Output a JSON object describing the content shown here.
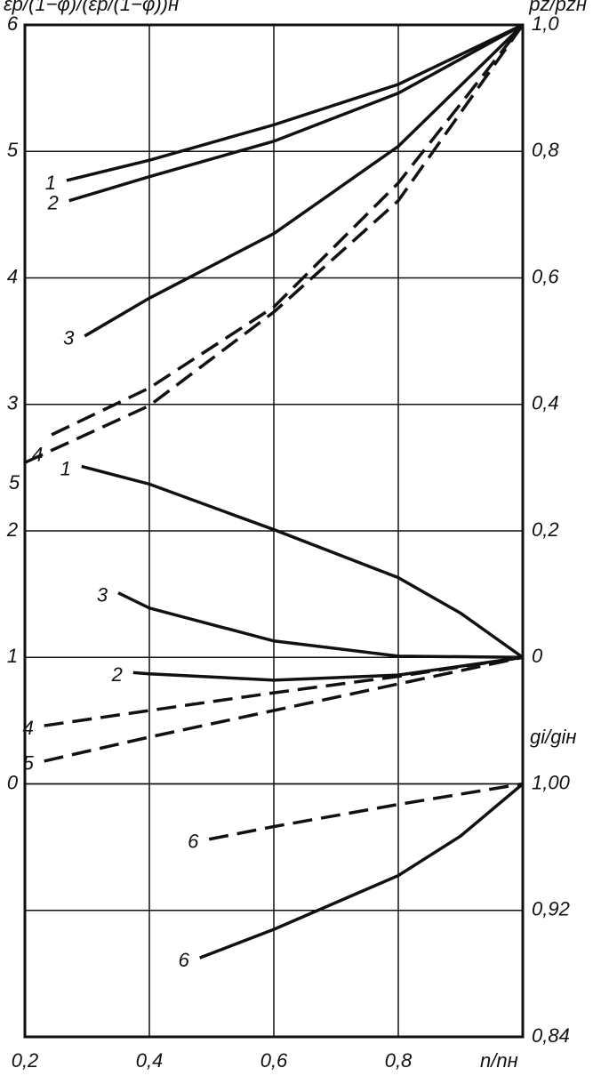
{
  "chart_data": {
    "type": "line",
    "y_label": "εp/(1−φ)/(εp/(1−φ))н",
    "y2_label": "pz/pzн",
    "y3_label": "gi/giн",
    "x_label": "n/nн",
    "xlim": [
      0.2,
      1.0
    ],
    "xticks": [
      {
        "value": 0.2,
        "label": "0,2"
      },
      {
        "value": 0.4,
        "label": "0,4"
      },
      {
        "value": 0.6,
        "label": "0,6"
      },
      {
        "value": 0.8,
        "label": "0,8"
      }
    ],
    "ylim": [
      -2,
      6
    ],
    "yticks": [
      0,
      1,
      2,
      3,
      4,
      5,
      6
    ],
    "y2lim": [
      -0.6,
      1.0
    ],
    "y2ticks": [
      {
        "value": 0,
        "label": "0"
      },
      {
        "value": 0.2,
        "label": "0,2"
      },
      {
        "value": 0.4,
        "label": "0,4"
      },
      {
        "value": 0.6,
        "label": "0,6"
      },
      {
        "value": 0.8,
        "label": "0,8"
      },
      {
        "value": 1.0,
        "label": "1,0"
      }
    ],
    "y3lim": [
      0.84,
      1.48
    ],
    "y3ticks": [
      {
        "value": 0.84,
        "label": "0,84"
      },
      {
        "value": 0.92,
        "label": "0,92"
      },
      {
        "value": 1.0,
        "label": "1,00"
      }
    ],
    "grid": true,
    "series": [
      {
        "name": "1",
        "color": "#111",
        "dash": false,
        "axis": "y2",
        "x": [
          0.267,
          0.4,
          0.6,
          0.8,
          1.0
        ],
        "values": [
          0.754,
          0.786,
          0.842,
          0.906,
          1.0
        ]
      },
      {
        "name": "2",
        "color": "#111",
        "dash": false,
        "axis": "y2",
        "x": [
          0.271,
          0.4,
          0.6,
          0.8,
          1.0
        ],
        "values": [
          0.722,
          0.76,
          0.816,
          0.892,
          1.0
        ]
      },
      {
        "name": "3",
        "color": "#111",
        "dash": false,
        "axis": "y2",
        "x": [
          0.296,
          0.4,
          0.6,
          0.8,
          1.0
        ],
        "values": [
          0.508,
          0.568,
          0.67,
          0.808,
          1.0
        ]
      },
      {
        "name": "4",
        "color": "#111",
        "dash": true,
        "axis": "y2",
        "x": [
          0.243,
          0.4,
          0.6,
          0.8,
          1.0
        ],
        "values": [
          0.352,
          0.426,
          0.554,
          0.75,
          1.0
        ]
      },
      {
        "name": "5",
        "color": "#111",
        "dash": true,
        "axis": "y2",
        "x": [
          0.2,
          0.4,
          0.6,
          0.8,
          1.0
        ],
        "values": [
          0.308,
          0.398,
          0.546,
          0.722,
          1.0
        ]
      },
      {
        "name": "1",
        "color": "#111",
        "dash": false,
        "axis": "y",
        "x": [
          0.291,
          0.4,
          0.6,
          0.8,
          0.9,
          1.0
        ],
        "values": [
          2.51,
          2.37,
          2.01,
          1.63,
          1.35,
          1.0
        ]
      },
      {
        "name": "3",
        "color": "#111",
        "dash": false,
        "axis": "y",
        "x": [
          0.35,
          0.4,
          0.6,
          0.8,
          1.0
        ],
        "values": [
          1.51,
          1.39,
          1.13,
          1.01,
          1.0
        ]
      },
      {
        "name": "2",
        "color": "#111",
        "dash": false,
        "axis": "y",
        "x": [
          0.374,
          0.4,
          0.6,
          0.8,
          1.0
        ],
        "values": [
          0.88,
          0.87,
          0.82,
          0.86,
          1.0
        ]
      },
      {
        "name": "4",
        "color": "#111",
        "dash": true,
        "axis": "y",
        "x": [
          0.231,
          0.4,
          0.6,
          0.8,
          1.0
        ],
        "values": [
          0.46,
          0.58,
          0.72,
          0.85,
          1.0
        ]
      },
      {
        "name": "5",
        "color": "#111",
        "dash": true,
        "axis": "y",
        "x": [
          0.231,
          0.4,
          0.6,
          0.8,
          1.0
        ],
        "values": [
          0.18,
          0.37,
          0.58,
          0.79,
          1.0
        ]
      },
      {
        "name": "6",
        "color": "#111",
        "dash": true,
        "axis": "y3",
        "x": [
          0.496,
          0.6,
          0.8,
          1.0
        ],
        "values": [
          0.965,
          0.973,
          0.987,
          1.0
        ]
      },
      {
        "name": "6",
        "color": "#111",
        "dash": false,
        "axis": "y3",
        "x": [
          0.481,
          0.6,
          0.8,
          0.9,
          1.0
        ],
        "values": [
          0.89,
          0.908,
          0.942,
          0.967,
          1.0
        ]
      }
    ]
  }
}
